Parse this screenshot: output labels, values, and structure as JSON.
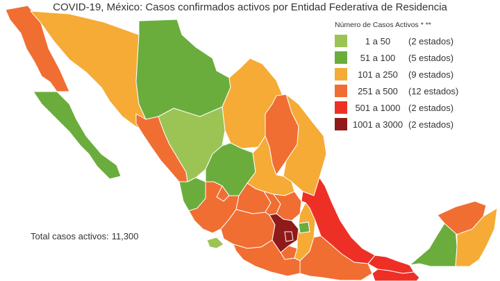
{
  "title": "COVID-19, México: Casos confirmados activos por Entidad Federativa de Residencia",
  "legend": {
    "title": "Número de Casos Activos * **",
    "items": [
      {
        "range": "1 a 50",
        "count": "(2 estados)",
        "color": "#9cc455"
      },
      {
        "range": "51 a 100",
        "count": "(5 estados)",
        "color": "#6aad3d"
      },
      {
        "range": "101 a 250",
        "count": "(9 estados)",
        "color": "#f5ab36"
      },
      {
        "range": "251 a 500",
        "count": "(12 estados)",
        "color": "#f06e32"
      },
      {
        "range": "501 a 1000",
        "count": "(2 estados)",
        "color": "#ee2f25"
      },
      {
        "range": "1001 a 3000",
        "count": "(2 estados)",
        "color": "#8e1a19"
      }
    ]
  },
  "total": {
    "label": "Total casos activos:",
    "value": "11,300"
  },
  "colors": {
    "c1": "#9cc455",
    "c2": "#6aad3d",
    "c3": "#f5ab36",
    "c4": "#f06e32",
    "c5": "#ee2f25",
    "c6": "#8e1a19"
  }
}
